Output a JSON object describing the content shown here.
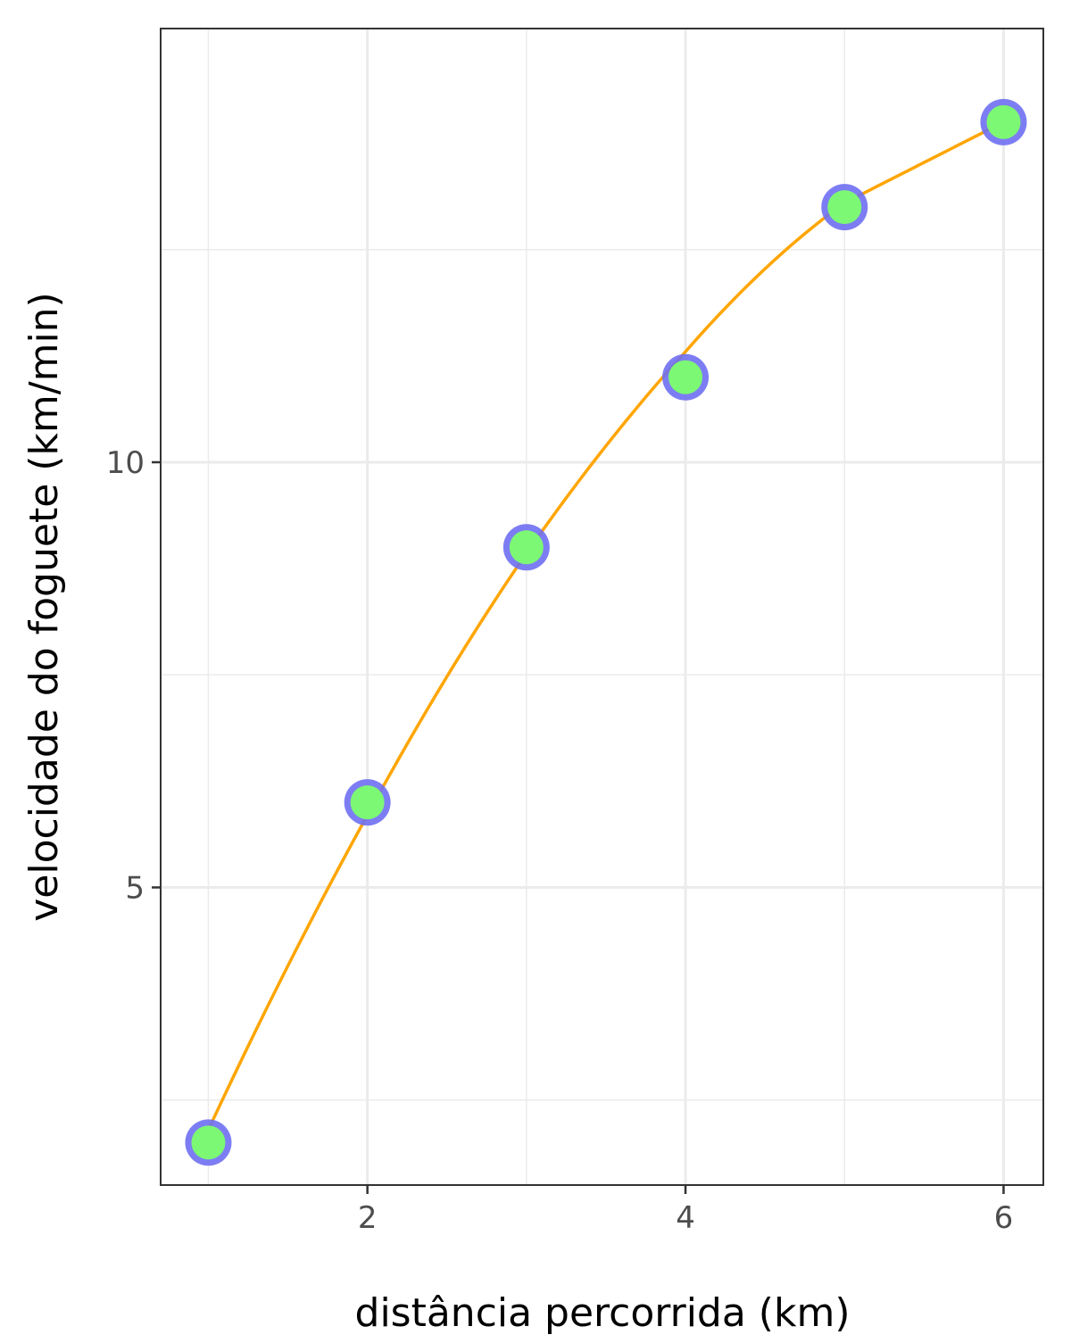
{
  "chart_data": {
    "type": "scatter",
    "title": "",
    "xlabel": "distância percorrida (km)",
    "ylabel": "velocidade do foguete (km/min)",
    "xlim": [
      0.7,
      6.25
    ],
    "ylim": [
      1.5,
      15.1
    ],
    "x_ticks": [
      2,
      4,
      6
    ],
    "y_ticks": [
      5,
      10
    ],
    "x_minor_grid": [
      1,
      3,
      5
    ],
    "y_minor_grid": [
      2.5,
      7.5,
      12.5
    ],
    "grid": true,
    "legend": "none",
    "series": [
      {
        "kind": "points",
        "x": [
          1,
          2,
          3,
          4,
          5,
          6
        ],
        "y": [
          2.0,
          6.0,
          9.0,
          11.0,
          13.0,
          14.0
        ]
      },
      {
        "kind": "fitted-curve",
        "x": [
          1,
          2,
          3,
          4,
          5,
          6
        ],
        "y": [
          2.15,
          5.85,
          8.93,
          11.3,
          13.05,
          14.0
        ]
      }
    ],
    "colors": {
      "point_fill": "#7cff6e",
      "point_outline": "#6f6ff2",
      "curve": "#ffa500",
      "grid": "#ebebeb",
      "panel_border": "#333333"
    }
  }
}
